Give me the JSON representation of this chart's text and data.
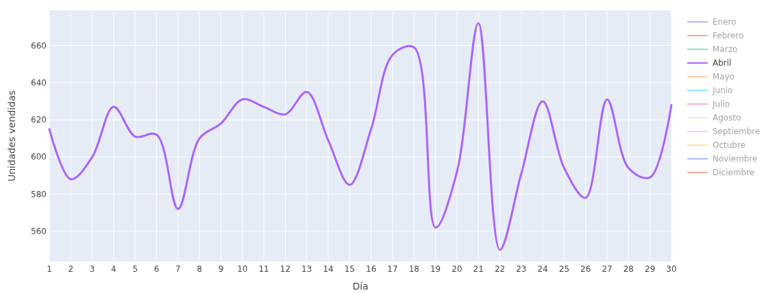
{
  "chart_data": {
    "type": "line",
    "xlabel": "Día",
    "ylabel": "Unidades vendidas",
    "x": [
      1,
      2,
      3,
      4,
      5,
      6,
      7,
      8,
      9,
      10,
      11,
      12,
      13,
      14,
      15,
      16,
      17,
      18,
      19,
      20,
      21,
      22,
      23,
      24,
      25,
      26,
      27,
      28,
      29,
      30
    ],
    "xlim": [
      1,
      30
    ],
    "xticks": [
      1,
      2,
      3,
      4,
      5,
      6,
      7,
      8,
      9,
      10,
      11,
      12,
      13,
      14,
      15,
      16,
      17,
      18,
      19,
      20,
      21,
      22,
      23,
      24,
      25,
      26,
      27,
      28,
      29,
      30
    ],
    "ylim": [
      543.7,
      679
    ],
    "yticks": [
      560,
      580,
      600,
      620,
      640,
      660
    ],
    "grid": true,
    "legend": "top right",
    "line_style": "solid",
    "series": [
      {
        "name": "Enero",
        "color": "#636efa",
        "values": [
          null,
          null,
          null,
          null,
          null,
          null,
          null,
          null,
          null,
          null,
          null,
          null,
          null,
          null,
          null,
          null,
          null,
          null,
          null,
          null,
          null,
          null,
          null,
          null,
          null,
          null,
          null,
          null,
          null,
          null
        ]
      },
      {
        "name": "Febrero",
        "color": "#ef553b",
        "values": [
          null,
          null,
          null,
          null,
          null,
          null,
          null,
          null,
          null,
          null,
          null,
          null,
          null,
          null,
          null,
          null,
          null,
          null,
          null,
          null,
          null,
          null,
          null,
          null,
          null,
          null,
          null,
          null,
          null,
          null
        ]
      },
      {
        "name": "Marzo",
        "color": "#00cc96",
        "values": [
          null,
          null,
          null,
          null,
          null,
          null,
          null,
          null,
          null,
          null,
          null,
          null,
          null,
          null,
          null,
          null,
          null,
          null,
          null,
          null,
          null,
          null,
          null,
          null,
          null,
          null,
          null,
          null,
          null,
          null
        ]
      },
      {
        "name": "Abril",
        "color": "#ab63fa",
        "values": [
          615,
          588,
          600,
          627,
          611,
          612,
          572,
          610,
          618,
          631,
          627,
          623,
          635,
          609,
          585,
          615,
          655,
          659,
          562,
          592,
          672,
          550,
          591,
          630,
          594,
          578,
          631,
          594,
          589,
          628
        ]
      },
      {
        "name": "Mayo",
        "color": "#ffa15a",
        "values": [
          null,
          null,
          null,
          null,
          null,
          null,
          null,
          null,
          null,
          null,
          null,
          null,
          null,
          null,
          null,
          null,
          null,
          null,
          null,
          null,
          null,
          null,
          null,
          null,
          null,
          null,
          null,
          null,
          null,
          null
        ]
      },
      {
        "name": "Junio",
        "color": "#19d3f3",
        "values": [
          null,
          null,
          null,
          null,
          null,
          null,
          null,
          null,
          null,
          null,
          null,
          null,
          null,
          null,
          null,
          null,
          null,
          null,
          null,
          null,
          null,
          null,
          null,
          null,
          null,
          null,
          null,
          null,
          null,
          null
        ]
      },
      {
        "name": "Julio",
        "color": "#ff6692",
        "values": [
          null,
          null,
          null,
          null,
          null,
          null,
          null,
          null,
          null,
          null,
          null,
          null,
          null,
          null,
          null,
          null,
          null,
          null,
          null,
          null,
          null,
          null,
          null,
          null,
          null,
          null,
          null,
          null,
          null,
          null
        ]
      },
      {
        "name": "Agosto",
        "color": "#b6e880",
        "values": [
          null,
          null,
          null,
          null,
          null,
          null,
          null,
          null,
          null,
          null,
          null,
          null,
          null,
          null,
          null,
          null,
          null,
          null,
          null,
          null,
          null,
          null,
          null,
          null,
          null,
          null,
          null,
          null,
          null,
          null
        ]
      },
      {
        "name": "Septiembre",
        "color": "#ff97ff",
        "values": [
          null,
          null,
          null,
          null,
          null,
          null,
          null,
          null,
          null,
          null,
          null,
          null,
          null,
          null,
          null,
          null,
          null,
          null,
          null,
          null,
          null,
          null,
          null,
          null,
          null,
          null,
          null,
          null,
          null,
          null
        ]
      },
      {
        "name": "Octubre",
        "color": "#fecb52",
        "values": [
          null,
          null,
          null,
          null,
          null,
          null,
          null,
          null,
          null,
          null,
          null,
          null,
          null,
          null,
          null,
          null,
          null,
          null,
          null,
          null,
          null,
          null,
          null,
          null,
          null,
          null,
          null,
          null,
          null,
          null
        ]
      },
      {
        "name": "Noviembre",
        "color": "#636efa",
        "values": [
          null,
          null,
          null,
          null,
          null,
          null,
          null,
          null,
          null,
          null,
          null,
          null,
          null,
          null,
          null,
          null,
          null,
          null,
          null,
          null,
          null,
          null,
          null,
          null,
          null,
          null,
          null,
          null,
          null,
          null
        ]
      },
      {
        "name": "Diciembre",
        "color": "#ef553b",
        "values": [
          null,
          null,
          null,
          null,
          null,
          null,
          null,
          null,
          null,
          null,
          null,
          null,
          null,
          null,
          null,
          null,
          null,
          null,
          null,
          null,
          null,
          null,
          null,
          null,
          null,
          null,
          null,
          null,
          null,
          null
        ]
      }
    ]
  }
}
